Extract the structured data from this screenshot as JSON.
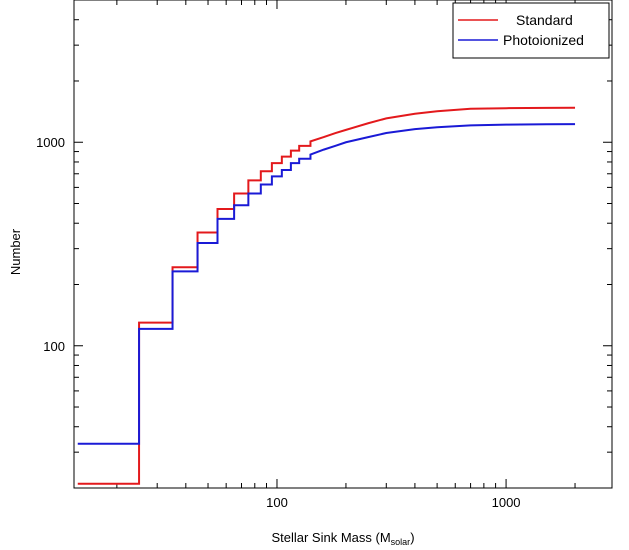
{
  "chart_data": {
    "type": "line",
    "title": "",
    "xlabel": "Stellar Sink Mass  (M",
    "xlabel_sub": "solar",
    "xlabel_close": ")",
    "ylabel": "Number",
    "xscale": "log",
    "yscale": "log",
    "xlim": [
      13,
      2900
    ],
    "ylim": [
      20,
      5000
    ],
    "x_ticks": [
      100,
      1000
    ],
    "x_tick_labels": [
      "100",
      "1000"
    ],
    "y_ticks": [
      100,
      1000
    ],
    "y_tick_labels": [
      "100",
      "1000"
    ],
    "grid": false,
    "legend_position": "top-right",
    "line_style": "step",
    "series": [
      {
        "name": "Standard",
        "color": "#e3191c",
        "points": [
          [
            13.5,
            21
          ],
          [
            25,
            21
          ],
          [
            25,
            130
          ],
          [
            35,
            130
          ],
          [
            35,
            243
          ],
          [
            45,
            243
          ],
          [
            45,
            360
          ],
          [
            55,
            360
          ],
          [
            55,
            470
          ],
          [
            65,
            470
          ],
          [
            65,
            560
          ],
          [
            75,
            560
          ],
          [
            75,
            650
          ],
          [
            85,
            650
          ],
          [
            85,
            720
          ],
          [
            95,
            720
          ],
          [
            95,
            790
          ],
          [
            105,
            790
          ],
          [
            105,
            850
          ],
          [
            115,
            850
          ],
          [
            115,
            910
          ],
          [
            125,
            910
          ],
          [
            125,
            960
          ],
          [
            140,
            960
          ],
          [
            140,
            1010
          ],
          [
            160,
            1060
          ],
          [
            180,
            1110
          ],
          [
            200,
            1150
          ],
          [
            250,
            1240
          ],
          [
            300,
            1310
          ],
          [
            400,
            1380
          ],
          [
            500,
            1420
          ],
          [
            700,
            1460
          ],
          [
            1000,
            1470
          ],
          [
            1500,
            1475
          ],
          [
            2000,
            1478
          ]
        ]
      },
      {
        "name": "Photoionized",
        "color": "#1a1ad6",
        "points": [
          [
            13.5,
            33
          ],
          [
            25,
            33
          ],
          [
            25,
            121
          ],
          [
            35,
            121
          ],
          [
            35,
            232
          ],
          [
            45,
            232
          ],
          [
            45,
            320
          ],
          [
            55,
            320
          ],
          [
            55,
            420
          ],
          [
            65,
            420
          ],
          [
            65,
            490
          ],
          [
            75,
            490
          ],
          [
            75,
            560
          ],
          [
            85,
            560
          ],
          [
            85,
            620
          ],
          [
            95,
            620
          ],
          [
            95,
            680
          ],
          [
            105,
            680
          ],
          [
            105,
            730
          ],
          [
            115,
            730
          ],
          [
            115,
            790
          ],
          [
            125,
            790
          ],
          [
            125,
            830
          ],
          [
            140,
            830
          ],
          [
            140,
            870
          ],
          [
            160,
            920
          ],
          [
            180,
            960
          ],
          [
            200,
            1000
          ],
          [
            250,
            1060
          ],
          [
            300,
            1110
          ],
          [
            400,
            1160
          ],
          [
            500,
            1185
          ],
          [
            700,
            1210
          ],
          [
            1000,
            1220
          ],
          [
            1500,
            1225
          ],
          [
            2000,
            1228
          ]
        ]
      }
    ]
  }
}
